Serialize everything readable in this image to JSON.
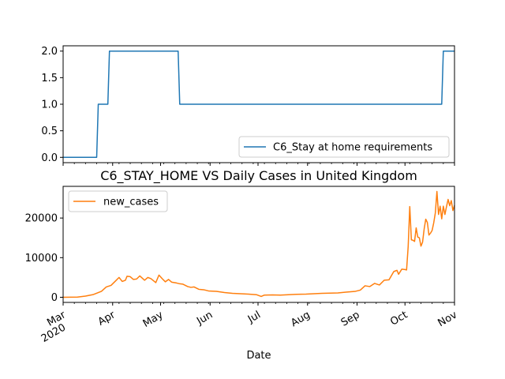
{
  "chart_data": [
    {
      "type": "line",
      "title": "",
      "xlabel": "",
      "ylabel": "",
      "x_range": [
        "2020-03-01",
        "2020-11-01"
      ],
      "ylim": [
        -0.1,
        2.1
      ],
      "y_ticks": [
        0.0,
        0.5,
        1.0,
        1.5,
        2.0
      ],
      "y_tick_labels": [
        "0.0",
        "0.5",
        "1.0",
        "1.5",
        "2.0"
      ],
      "legend_position": "lower-right",
      "series": [
        {
          "name": "C6_Stay at home requirements",
          "color": "#1f77b4",
          "points": [
            [
              "2020-03-01",
              0
            ],
            [
              "2020-03-22",
              0
            ],
            [
              "2020-03-23",
              1
            ],
            [
              "2020-03-29",
              1
            ],
            [
              "2020-03-30",
              2
            ],
            [
              "2020-05-12",
              2
            ],
            [
              "2020-05-13",
              1
            ],
            [
              "2020-10-24",
              1
            ],
            [
              "2020-10-25",
              2
            ],
            [
              "2020-11-01",
              2
            ]
          ]
        }
      ]
    },
    {
      "type": "line",
      "title": "C6_STAY_HOME VS Daily Cases in United Kingdom",
      "xlabel": "Date",
      "ylabel": "",
      "x_range": [
        "2020-03-01",
        "2020-11-01"
      ],
      "ylim": [
        -1300,
        28000
      ],
      "y_ticks": [
        0,
        10000,
        20000
      ],
      "y_tick_labels": [
        "0",
        "10000",
        "20000"
      ],
      "x_ticks": [
        {
          "date": "2020-03-01",
          "label": "Mar",
          "sublabel": "2020"
        },
        {
          "date": "2020-04-01",
          "label": "Apr"
        },
        {
          "date": "2020-05-01",
          "label": "May"
        },
        {
          "date": "2020-06-01",
          "label": "Jun"
        },
        {
          "date": "2020-07-01",
          "label": "Jul"
        },
        {
          "date": "2020-08-01",
          "label": "Aug"
        },
        {
          "date": "2020-09-01",
          "label": "Sep"
        },
        {
          "date": "2020-10-01",
          "label": "Oct"
        },
        {
          "date": "2020-11-01",
          "label": "Nov"
        }
      ],
      "legend_position": "upper-left",
      "series": [
        {
          "name": "new_cases",
          "color": "#ff7f0e",
          "points": [
            [
              "2020-03-01",
              0
            ],
            [
              "2020-03-10",
              50
            ],
            [
              "2020-03-15",
              300
            ],
            [
              "2020-03-20",
              700
            ],
            [
              "2020-03-25",
              1500
            ],
            [
              "2020-03-28",
              2600
            ],
            [
              "2020-03-31",
              3000
            ],
            [
              "2020-04-03",
              4200
            ],
            [
              "2020-04-05",
              5000
            ],
            [
              "2020-04-07",
              4000
            ],
            [
              "2020-04-09",
              4300
            ],
            [
              "2020-04-10",
              5300
            ],
            [
              "2020-04-12",
              5200
            ],
            [
              "2020-04-14",
              4500
            ],
            [
              "2020-04-16",
              4600
            ],
            [
              "2020-04-18",
              5400
            ],
            [
              "2020-04-21",
              4300
            ],
            [
              "2020-04-23",
              5000
            ],
            [
              "2020-04-25",
              4700
            ],
            [
              "2020-04-28",
              3700
            ],
            [
              "2020-04-30",
              5600
            ],
            [
              "2020-05-02",
              4700
            ],
            [
              "2020-05-04",
              3900
            ],
            [
              "2020-05-06",
              4500
            ],
            [
              "2020-05-08",
              3800
            ],
            [
              "2020-05-11",
              3600
            ],
            [
              "2020-05-13",
              3400
            ],
            [
              "2020-05-15",
              3300
            ],
            [
              "2020-05-18",
              2700
            ],
            [
              "2020-05-20",
              2500
            ],
            [
              "2020-05-22",
              2600
            ],
            [
              "2020-05-25",
              2000
            ],
            [
              "2020-05-28",
              1900
            ],
            [
              "2020-05-31",
              1600
            ],
            [
              "2020-06-05",
              1500
            ],
            [
              "2020-06-10",
              1200
            ],
            [
              "2020-06-15",
              1000
            ],
            [
              "2020-06-20",
              900
            ],
            [
              "2020-06-25",
              800
            ],
            [
              "2020-06-30",
              650
            ],
            [
              "2020-07-03",
              200
            ],
            [
              "2020-07-05",
              550
            ],
            [
              "2020-07-10",
              600
            ],
            [
              "2020-07-15",
              550
            ],
            [
              "2020-07-20",
              650
            ],
            [
              "2020-07-25",
              750
            ],
            [
              "2020-07-31",
              800
            ],
            [
              "2020-08-05",
              900
            ],
            [
              "2020-08-10",
              1000
            ],
            [
              "2020-08-15",
              1050
            ],
            [
              "2020-08-20",
              1100
            ],
            [
              "2020-08-25",
              1300
            ],
            [
              "2020-08-31",
              1500
            ],
            [
              "2020-09-03",
              1800
            ],
            [
              "2020-09-06",
              2900
            ],
            [
              "2020-09-09",
              2700
            ],
            [
              "2020-09-12",
              3500
            ],
            [
              "2020-09-15",
              3100
            ],
            [
              "2020-09-18",
              4300
            ],
            [
              "2020-09-21",
              4400
            ],
            [
              "2020-09-24",
              6500
            ],
            [
              "2020-09-26",
              6800
            ],
            [
              "2020-09-27",
              5800
            ],
            [
              "2020-09-29",
              7100
            ],
            [
              "2020-10-01",
              7000
            ],
            [
              "2020-10-02",
              6900
            ],
            [
              "2020-10-03",
              12800
            ],
            [
              "2020-10-04",
              22900
            ],
            [
              "2020-10-05",
              14500
            ],
            [
              "2020-10-06",
              14400
            ],
            [
              "2020-10-07",
              14100
            ],
            [
              "2020-10-08",
              17500
            ],
            [
              "2020-10-09",
              15200
            ],
            [
              "2020-10-10",
              15000
            ],
            [
              "2020-10-11",
              12900
            ],
            [
              "2020-10-12",
              13900
            ],
            [
              "2020-10-13",
              17200
            ],
            [
              "2020-10-14",
              19700
            ],
            [
              "2020-10-15",
              18900
            ],
            [
              "2020-10-16",
              15700
            ],
            [
              "2020-10-17",
              16200
            ],
            [
              "2020-10-18",
              16900
            ],
            [
              "2020-10-19",
              18800
            ],
            [
              "2020-10-20",
              21300
            ],
            [
              "2020-10-21",
              26700
            ],
            [
              "2020-10-22",
              20900
            ],
            [
              "2020-10-23",
              23000
            ],
            [
              "2020-10-24",
              19800
            ],
            [
              "2020-10-25",
              23000
            ],
            [
              "2020-10-26",
              20900
            ],
            [
              "2020-10-27",
              22900
            ],
            [
              "2020-10-28",
              24700
            ],
            [
              "2020-10-29",
              23100
            ],
            [
              "2020-10-30",
              24400
            ],
            [
              "2020-10-31",
              21900
            ],
            [
              "2020-11-01",
              23200
            ]
          ]
        }
      ]
    }
  ]
}
